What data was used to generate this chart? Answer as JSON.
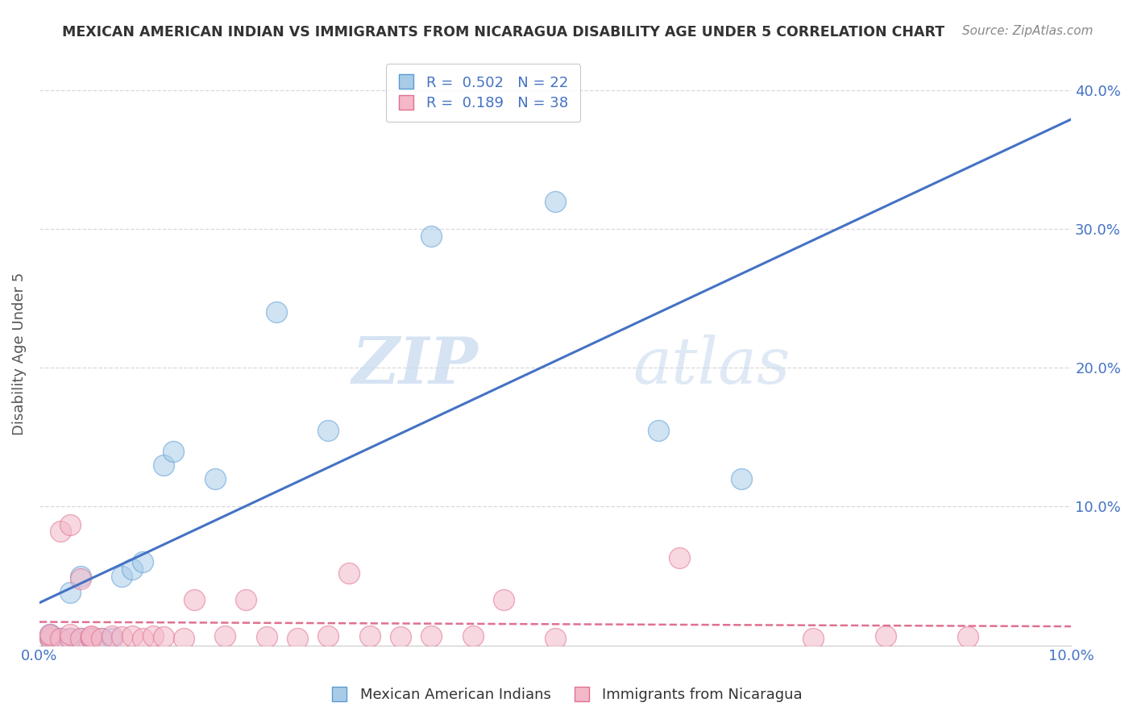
{
  "title": "MEXICAN AMERICAN INDIAN VS IMMIGRANTS FROM NICARAGUA DISABILITY AGE UNDER 5 CORRELATION CHART",
  "source": "Source: ZipAtlas.com",
  "ylabel": "Disability Age Under 5",
  "legend_blue_R": "0.502",
  "legend_blue_N": "22",
  "legend_pink_R": "0.189",
  "legend_pink_N": "38",
  "legend_label_blue": "Mexican American Indians",
  "legend_label_pink": "Immigrants from Nicaragua",
  "blue_color": "#a8cce8",
  "blue_edge_color": "#5b9bd5",
  "blue_line_color": "#4472c4",
  "pink_color": "#f4b8c8",
  "pink_edge_color": "#e07090",
  "pink_line_color": "#e07090",
  "watermark_zip": "ZIP",
  "watermark_atlas": "atlas",
  "blue_x": [
    0.001,
    0.001,
    0.002,
    0.003,
    0.003,
    0.004,
    0.004,
    0.005,
    0.006,
    0.007,
    0.008,
    0.009,
    0.01,
    0.012,
    0.013,
    0.017,
    0.023,
    0.028,
    0.038,
    0.05,
    0.06,
    0.068
  ],
  "blue_y": [
    0.005,
    0.008,
    0.005,
    0.005,
    0.038,
    0.005,
    0.05,
    0.005,
    0.005,
    0.005,
    0.05,
    0.055,
    0.06,
    0.13,
    0.14,
    0.12,
    0.24,
    0.155,
    0.295,
    0.32,
    0.155,
    0.12
  ],
  "pink_x": [
    0.001,
    0.001,
    0.001,
    0.002,
    0.002,
    0.003,
    0.003,
    0.003,
    0.004,
    0.004,
    0.005,
    0.005,
    0.005,
    0.006,
    0.007,
    0.008,
    0.009,
    0.01,
    0.011,
    0.012,
    0.014,
    0.015,
    0.018,
    0.02,
    0.022,
    0.025,
    0.028,
    0.03,
    0.032,
    0.035,
    0.038,
    0.042,
    0.045,
    0.05,
    0.062,
    0.075,
    0.082,
    0.09
  ],
  "pink_y": [
    0.005,
    0.007,
    0.008,
    0.005,
    0.082,
    0.005,
    0.008,
    0.087,
    0.005,
    0.048,
    0.005,
    0.006,
    0.007,
    0.005,
    0.007,
    0.006,
    0.007,
    0.005,
    0.007,
    0.006,
    0.005,
    0.033,
    0.007,
    0.033,
    0.006,
    0.005,
    0.007,
    0.052,
    0.007,
    0.006,
    0.007,
    0.007,
    0.033,
    0.005,
    0.063,
    0.005,
    0.007,
    0.006
  ],
  "xmin": 0.0,
  "xmax": 0.1,
  "ymin": 0.0,
  "ymax": 0.42,
  "yticks": [
    0.0,
    0.1,
    0.2,
    0.3,
    0.4
  ],
  "ytick_labels_right": [
    "",
    "10.0%",
    "20.0%",
    "30.0%",
    "40.0%"
  ],
  "background_color": "#ffffff",
  "grid_color": "#d9d9d9"
}
